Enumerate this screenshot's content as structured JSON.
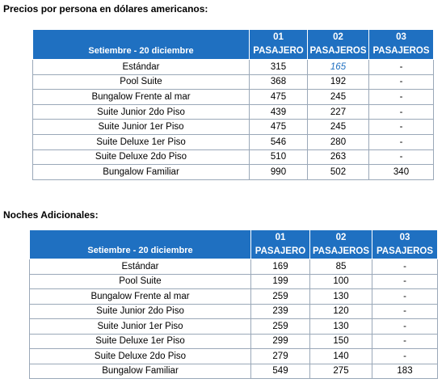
{
  "sections": [
    {
      "title": "Precios por persona en dólares americanos:",
      "table": {
        "header": [
          "Setiembre - 20 diciembre",
          {
            "num": "01",
            "label": "PASAJERO"
          },
          {
            "num": "02",
            "label": "PASAJEROS"
          },
          {
            "num": "03",
            "label": "PASAJEROS"
          }
        ],
        "rows": [
          [
            "Estándar",
            315,
            165,
            "-"
          ],
          [
            "Pool Suite",
            368,
            192,
            "-"
          ],
          [
            "Bungalow Frente al mar",
            475,
            245,
            "-"
          ],
          [
            "Suite Junior 2do Piso",
            439,
            227,
            "-"
          ],
          [
            "Suite Junior 1er Piso",
            475,
            245,
            "-"
          ],
          [
            "Suite Deluxe 1er Piso",
            546,
            280,
            "-"
          ],
          [
            "Suite Deluxe 2do Piso",
            510,
            263,
            "-"
          ],
          [
            "Bungalow Familiar",
            990,
            502,
            340
          ]
        ]
      }
    },
    {
      "title": "Noches Adicionales:",
      "table": {
        "header": [
          "Setiembre - 20 diciembre",
          {
            "num": "01",
            "label": "PASAJERO"
          },
          {
            "num": "02",
            "label": "PASAJEROS"
          },
          {
            "num": "03",
            "label": "PASAJEROS"
          }
        ],
        "rows": [
          [
            "Estándar",
            169,
            85,
            "-"
          ],
          [
            "Pool Suite",
            199,
            100,
            "-"
          ],
          [
            "Bungalow Frente al mar",
            259,
            130,
            "-"
          ],
          [
            "Suite Junior 2do Piso",
            239,
            120,
            "-"
          ],
          [
            "Suite Junior 1er Piso",
            259,
            130,
            "-"
          ],
          [
            "Suite Deluxe 1er Piso",
            299,
            150,
            "-"
          ],
          [
            "Suite Deluxe 2do Piso",
            279,
            140,
            "-"
          ],
          [
            "Bungalow Familiar",
            549,
            275,
            183
          ]
        ]
      }
    }
  ]
}
